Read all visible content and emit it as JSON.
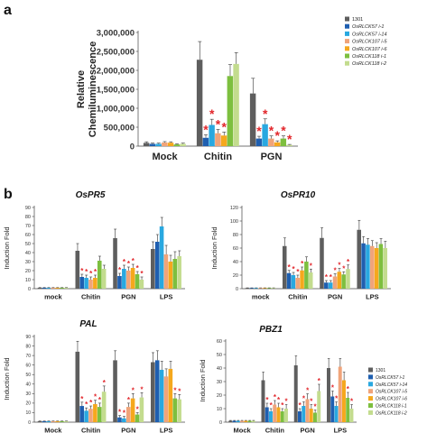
{
  "panel_labels": {
    "a": "a",
    "b": "b"
  },
  "colors": {
    "1301": "#5e5e5e",
    "OsRLCK57 i-1": "#1f5fb0",
    "OsRLCK57 i-14": "#29a8e0",
    "OsRLCK107 i-5": "#f0a47a",
    "OsRLCK107 i-6": "#f5a81d",
    "OsRLCK118 i-1": "#7dbf3f",
    "OsRLCK118 i-2": "#c3dc8e"
  },
  "star_color": "#e2262b",
  "chart_data": [
    {
      "id": "a",
      "type": "bar",
      "title": "",
      "ylabel": "Relative Chemiluminescence",
      "xlabel": "",
      "ylim": [
        0,
        3000000
      ],
      "yticks": [
        0,
        500000,
        1000000,
        1500000,
        2000000,
        2500000,
        3000000
      ],
      "yticklabels": [
        "0",
        "500,000",
        "1,000,000",
        "1,500,000",
        "2,000,000",
        "2,500,000",
        "3,000,000"
      ],
      "categories": [
        "Mock",
        "Chitin",
        "PGN"
      ],
      "legend": "right",
      "series": [
        {
          "name": "1301",
          "values": [
            85000,
            2280000,
            1390000
          ],
          "errors": [
            30000,
            480000,
            400000
          ],
          "sig": [
            false,
            false,
            false
          ]
        },
        {
          "name": "OsRLCK57 i-1",
          "values": [
            60000,
            220000,
            200000
          ],
          "errors": [
            20000,
            80000,
            60000
          ],
          "sig": [
            false,
            true,
            true
          ]
        },
        {
          "name": "OsRLCK57 i-14",
          "values": [
            60000,
            560000,
            580000
          ],
          "errors": [
            20000,
            150000,
            140000
          ],
          "sig": [
            false,
            true,
            true
          ]
        },
        {
          "name": "OsRLCK107 i-5",
          "values": [
            95000,
            340000,
            200000
          ],
          "errors": [
            25000,
            100000,
            70000
          ],
          "sig": [
            false,
            true,
            true
          ]
        },
        {
          "name": "OsRLCK107 i-6",
          "values": [
            90000,
            280000,
            100000
          ],
          "errors": [
            25000,
            90000,
            40000
          ],
          "sig": [
            false,
            true,
            true
          ]
        },
        {
          "name": "OsRLCK118 i-1",
          "values": [
            45000,
            1850000,
            200000
          ],
          "errors": [
            15000,
            300000,
            70000
          ],
          "sig": [
            false,
            false,
            true
          ]
        },
        {
          "name": "OsRLCK118 i-2",
          "values": [
            60000,
            2170000,
            30000
          ],
          "errors": [
            20000,
            300000,
            15000
          ],
          "sig": [
            false,
            false,
            true
          ]
        }
      ]
    },
    {
      "id": "b1",
      "type": "bar",
      "title": "OsPR5",
      "ylabel": "Induction Fold",
      "xlabel": "",
      "ylim": [
        0,
        90
      ],
      "yticks": [
        0,
        10,
        20,
        30,
        40,
        50,
        60,
        70,
        80,
        90
      ],
      "categories": [
        "mock",
        "Chitin",
        "PGN",
        "LPS"
      ],
      "series": [
        {
          "name": "1301",
          "values": [
            1,
            42,
            56,
            44
          ],
          "errors": [
            0.2,
            8,
            10,
            8
          ],
          "sig": [
            false,
            false,
            false,
            false
          ]
        },
        {
          "name": "OsRLCK57 i-1",
          "values": [
            1,
            13,
            14,
            52
          ],
          "errors": [
            0.2,
            3,
            3,
            8
          ],
          "sig": [
            false,
            true,
            true,
            false
          ]
        },
        {
          "name": "OsRLCK57 i-14",
          "values": [
            1,
            12,
            22,
            69
          ],
          "errors": [
            0.2,
            3,
            4,
            10
          ],
          "sig": [
            false,
            true,
            true,
            false
          ]
        },
        {
          "name": "OsRLCK107 i-5",
          "values": [
            1,
            10,
            20,
            38
          ],
          "errors": [
            0.2,
            3,
            4,
            10
          ],
          "sig": [
            false,
            true,
            true,
            false
          ]
        },
        {
          "name": "OsRLCK107 i-6",
          "values": [
            1,
            12,
            23,
            30
          ],
          "errors": [
            0.2,
            3,
            4,
            7
          ],
          "sig": [
            false,
            true,
            true,
            false
          ]
        },
        {
          "name": "OsRLCK118 i-1",
          "values": [
            1,
            31,
            16,
            33
          ],
          "errors": [
            0.2,
            5,
            3,
            8
          ],
          "sig": [
            false,
            false,
            true,
            false
          ]
        },
        {
          "name": "OsRLCK118 i-2",
          "values": [
            1,
            22,
            10,
            36
          ],
          "errors": [
            0.2,
            4,
            3,
            6
          ],
          "sig": [
            false,
            false,
            true,
            false
          ]
        }
      ]
    },
    {
      "id": "b2",
      "type": "bar",
      "title": "OsPR10",
      "ylabel": "Induction Fold",
      "xlabel": "",
      "ylim": [
        0,
        120
      ],
      "yticks": [
        0,
        20,
        40,
        60,
        80,
        100,
        120
      ],
      "categories": [
        "mock",
        "Chitin",
        "PGN",
        "LPS"
      ],
      "series": [
        {
          "name": "1301",
          "values": [
            1,
            63,
            75,
            87
          ],
          "errors": [
            0.2,
            12,
            15,
            14
          ],
          "sig": [
            false,
            false,
            false,
            false
          ]
        },
        {
          "name": "OsRLCK57 i-1",
          "values": [
            1,
            23,
            9,
            67
          ],
          "errors": [
            0.2,
            4,
            3,
            10
          ],
          "sig": [
            false,
            true,
            true,
            false
          ]
        },
        {
          "name": "OsRLCK57 i-14",
          "values": [
            1,
            20,
            9,
            65
          ],
          "errors": [
            0.2,
            4,
            3,
            9
          ],
          "sig": [
            false,
            true,
            true,
            false
          ]
        },
        {
          "name": "OsRLCK107 i-5",
          "values": [
            1,
            16,
            18,
            63
          ],
          "errors": [
            0.2,
            4,
            4,
            8
          ],
          "sig": [
            false,
            true,
            true,
            false
          ]
        },
        {
          "name": "OsRLCK107 i-6",
          "values": [
            1,
            27,
            25,
            60
          ],
          "errors": [
            0.2,
            5,
            5,
            8
          ],
          "sig": [
            false,
            true,
            true,
            false
          ]
        },
        {
          "name": "OsRLCK118 i-1",
          "values": [
            1,
            40,
            21,
            66
          ],
          "errors": [
            0.2,
            7,
            4,
            8
          ],
          "sig": [
            false,
            false,
            true,
            false
          ]
        },
        {
          "name": "OsRLCK118 i-2",
          "values": [
            1,
            24,
            29,
            60
          ],
          "errors": [
            0.2,
            5,
            6,
            10
          ],
          "sig": [
            false,
            true,
            true,
            false
          ]
        }
      ]
    },
    {
      "id": "b3",
      "type": "bar",
      "title": "PAL",
      "ylabel": "Induction Fold",
      "xlabel": "",
      "ylim": [
        0,
        90
      ],
      "yticks": [
        0,
        10,
        20,
        30,
        40,
        50,
        60,
        70,
        80,
        90
      ],
      "categories": [
        "Mock",
        "Chitin",
        "PGN",
        "LPS"
      ],
      "series": [
        {
          "name": "1301",
          "values": [
            1,
            74,
            65,
            63
          ],
          "errors": [
            0.2,
            11,
            10,
            10
          ],
          "sig": [
            false,
            false,
            false,
            false
          ]
        },
        {
          "name": "OsRLCK57 i-1",
          "values": [
            1,
            17,
            5,
            65
          ],
          "errors": [
            0.2,
            4,
            2,
            10
          ],
          "sig": [
            false,
            true,
            true,
            false
          ]
        },
        {
          "name": "OsRLCK57 i-14",
          "values": [
            1,
            12,
            4,
            55
          ],
          "errors": [
            0.2,
            3,
            2,
            9
          ],
          "sig": [
            false,
            true,
            true,
            false
          ]
        },
        {
          "name": "OsRLCK107 i-5",
          "values": [
            1,
            14,
            16,
            48
          ],
          "errors": [
            0.2,
            3,
            4,
            8
          ],
          "sig": [
            false,
            true,
            true,
            false
          ]
        },
        {
          "name": "OsRLCK107 i-6",
          "values": [
            1,
            19,
            25,
            56
          ],
          "errors": [
            0.2,
            4,
            5,
            8
          ],
          "sig": [
            false,
            true,
            true,
            false
          ]
        },
        {
          "name": "OsRLCK118 i-1",
          "values": [
            1,
            16,
            8,
            25
          ],
          "errors": [
            0.2,
            4,
            2,
            5
          ],
          "sig": [
            false,
            true,
            true,
            true
          ]
        },
        {
          "name": "OsRLCK118 i-2",
          "values": [
            1,
            32,
            26,
            24
          ],
          "errors": [
            0.2,
            6,
            5,
            5
          ],
          "sig": [
            false,
            true,
            true,
            true
          ]
        }
      ]
    },
    {
      "id": "b4",
      "type": "bar",
      "title": "PBZ1",
      "ylabel": "Induction Fold",
      "xlabel": "",
      "ylim": [
        0,
        60
      ],
      "yticks": [
        0,
        10,
        20,
        30,
        40,
        50,
        60
      ],
      "categories": [
        "Mock",
        "Chitin",
        "PGN",
        "LPS"
      ],
      "legend": "right",
      "series": [
        {
          "name": "1301",
          "values": [
            1,
            31,
            42,
            40
          ],
          "errors": [
            0.3,
            6,
            7,
            7
          ],
          "sig": [
            false,
            false,
            false,
            false
          ]
        },
        {
          "name": "OsRLCK57 i-1",
          "values": [
            1,
            11,
            8,
            19
          ],
          "errors": [
            0.3,
            3,
            2,
            4
          ],
          "sig": [
            false,
            true,
            true,
            true
          ]
        },
        {
          "name": "OsRLCK57 i-14",
          "values": [
            1,
            8,
            12,
            12
          ],
          "errors": [
            0.3,
            2,
            3,
            3
          ],
          "sig": [
            false,
            true,
            true,
            true
          ]
        },
        {
          "name": "OsRLCK107 i-5",
          "values": [
            1,
            13,
            17,
            41
          ],
          "errors": [
            0.3,
            3,
            4,
            6
          ],
          "sig": [
            false,
            true,
            true,
            false
          ]
        },
        {
          "name": "OsRLCK107 i-6",
          "values": [
            1,
            11,
            10,
            31
          ],
          "errors": [
            0.3,
            3,
            3,
            6
          ],
          "sig": [
            false,
            true,
            true,
            false
          ]
        },
        {
          "name": "OsRLCK118 i-1",
          "values": [
            1,
            8,
            7,
            18
          ],
          "errors": [
            0.3,
            2,
            2,
            4
          ],
          "sig": [
            false,
            true,
            true,
            true
          ]
        },
        {
          "name": "OsRLCK118 i-2",
          "values": [
            1,
            10,
            23,
            10
          ],
          "errors": [
            0.3,
            3,
            5,
            3
          ],
          "sig": [
            false,
            true,
            true,
            true
          ]
        }
      ]
    }
  ]
}
